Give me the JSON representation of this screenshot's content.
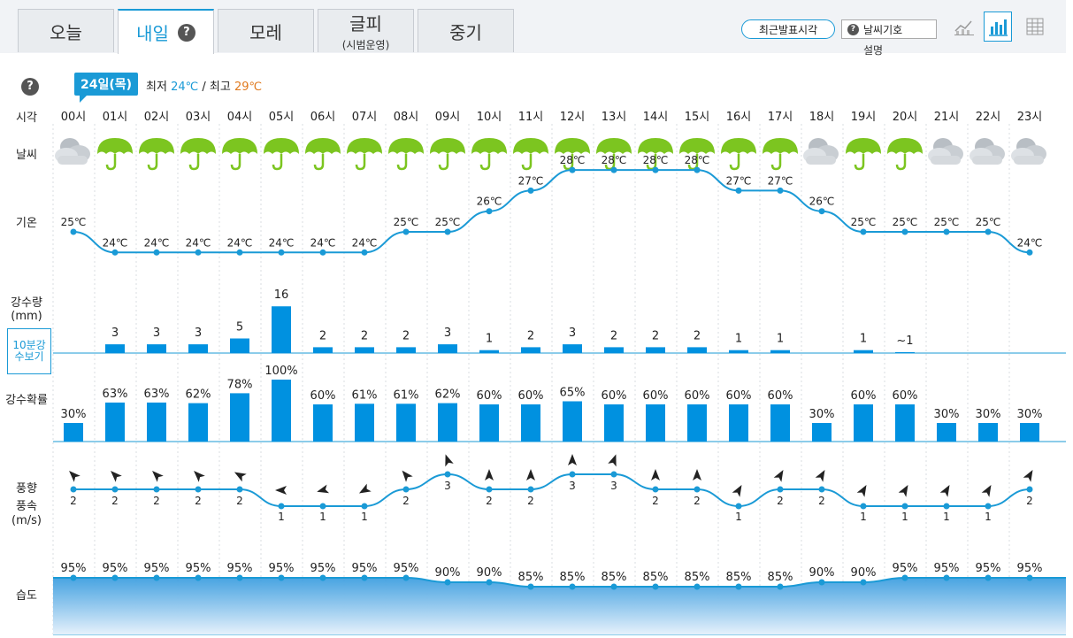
{
  "tabs": [
    {
      "label": "오늘",
      "sub": ""
    },
    {
      "label": "내일",
      "sub": ""
    },
    {
      "label": "모레",
      "sub": ""
    },
    {
      "label": "글피",
      "sub": "(시범운영)"
    },
    {
      "label": "중기",
      "sub": ""
    }
  ],
  "toolbar": {
    "recent_label": "최근발표시각",
    "symbol_label": "날씨기호",
    "symbol_sub": "설명"
  },
  "date_badge": "24일(목)",
  "minmax": {
    "min_label": "최저",
    "min_value": "24℃",
    "sep": "/",
    "max_label": "최고",
    "max_value": "29℃"
  },
  "row_labels": {
    "time": "시각",
    "weather": "날씨",
    "temp": "기온",
    "rain1": "강수량",
    "rain2": "(mm)",
    "prob": "강수확률",
    "wind1": "풍향",
    "wind2": "풍속",
    "wind3": "(m/s)",
    "humid": "습도"
  },
  "btn_10min": "10분강수보기",
  "colors": {
    "accent": "#1a9ad6",
    "bar": "#0091e0",
    "rain_icon": "#7cc520",
    "cloud": "#c9ced3"
  },
  "chart_data": {
    "type": "table",
    "hours": [
      "00시",
      "01시",
      "02시",
      "03시",
      "04시",
      "05시",
      "06시",
      "07시",
      "08시",
      "09시",
      "10시",
      "11시",
      "12시",
      "13시",
      "14시",
      "15시",
      "16시",
      "17시",
      "18시",
      "19시",
      "20시",
      "21시",
      "22시",
      "23시"
    ],
    "weather": [
      "cloudy",
      "rain",
      "rain",
      "rain",
      "rain",
      "rain",
      "rain",
      "rain",
      "rain",
      "rain",
      "rain",
      "rain",
      "rain",
      "rain",
      "rain",
      "rain",
      "rain",
      "rain",
      "cloudy",
      "rain",
      "rain",
      "cloudy",
      "cloudy",
      "cloudy"
    ],
    "temp": [
      25,
      24,
      24,
      24,
      24,
      24,
      24,
      24,
      25,
      25,
      26,
      27,
      28,
      28,
      28,
      28,
      27,
      27,
      26,
      25,
      25,
      25,
      25,
      24
    ],
    "temp_unit": "℃",
    "rain_mm": [
      0,
      3,
      3,
      3,
      5,
      16,
      2,
      2,
      2,
      3,
      1,
      2,
      3,
      2,
      2,
      2,
      1,
      1,
      0,
      1,
      0.5,
      0,
      0,
      0
    ],
    "rain_label": [
      "",
      "3",
      "3",
      "3",
      "5",
      "16",
      "2",
      "2",
      "2",
      "3",
      "1",
      "2",
      "3",
      "2",
      "2",
      "2",
      "1",
      "1",
      "",
      "1",
      "~1",
      "",
      "",
      ""
    ],
    "prob": [
      30,
      63,
      63,
      62,
      78,
      100,
      60,
      61,
      61,
      62,
      60,
      60,
      65,
      60,
      60,
      60,
      60,
      60,
      30,
      60,
      60,
      30,
      30,
      30
    ],
    "wind_speed": [
      2,
      2,
      2,
      2,
      2,
      1,
      1,
      1,
      2,
      3,
      2,
      2,
      3,
      3,
      2,
      2,
      1,
      2,
      2,
      1,
      1,
      1,
      1,
      2
    ],
    "wind_dir_deg": [
      315,
      315,
      315,
      315,
      300,
      270,
      255,
      240,
      320,
      340,
      0,
      0,
      0,
      20,
      0,
      0,
      30,
      30,
      30,
      30,
      30,
      30,
      30,
      30
    ],
    "humidity": [
      95,
      95,
      95,
      95,
      95,
      95,
      95,
      95,
      95,
      90,
      90,
      85,
      85,
      85,
      85,
      85,
      85,
      85,
      90,
      90,
      95,
      95,
      95,
      95
    ]
  }
}
